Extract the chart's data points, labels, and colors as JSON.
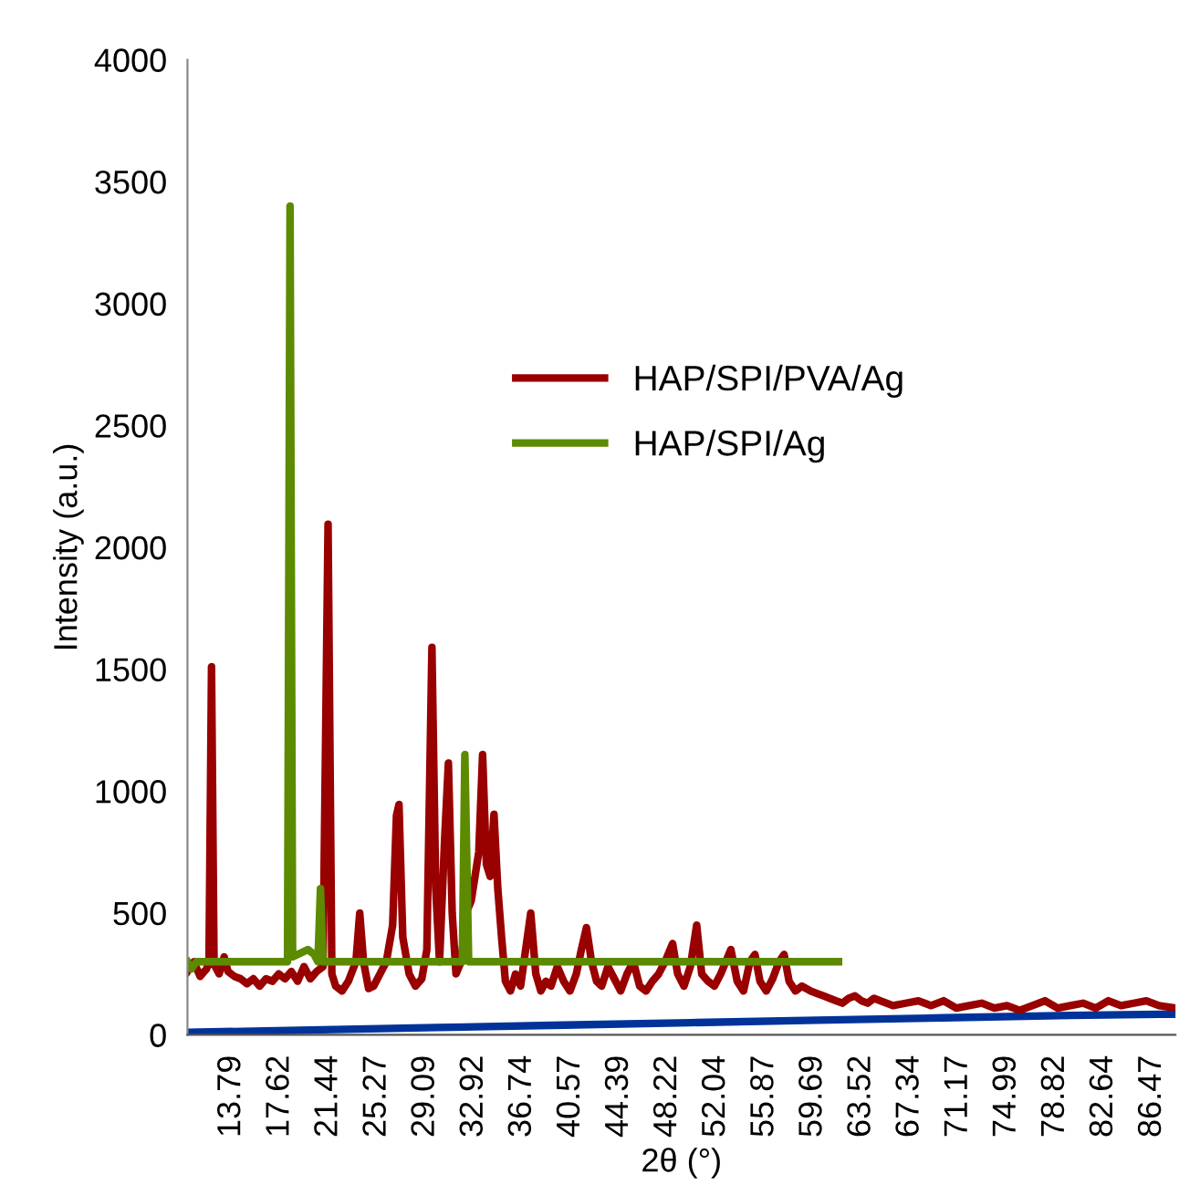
{
  "chart_data": {
    "type": "line",
    "xlabel": "2θ (°)",
    "ylabel": "Intensity (a.u.)",
    "xlim": [
      10.3,
      88.3
    ],
    "ylim": [
      0,
      4000
    ],
    "xticks": [
      13.79,
      17.62,
      21.44,
      25.27,
      29.09,
      32.92,
      36.74,
      40.57,
      44.39,
      48.22,
      52.04,
      55.87,
      59.69,
      63.52,
      67.34,
      71.17,
      74.99,
      78.82,
      82.64,
      86.47
    ],
    "yticks": [
      0,
      500,
      1000,
      1500,
      2000,
      2500,
      3000,
      3500,
      4000
    ],
    "grid": false,
    "legend": "center",
    "marker": "none",
    "line_style": "solid",
    "series": [
      {
        "color": "#003399",
        "x": [
          10.3,
          20,
          30,
          40,
          50,
          60,
          70,
          80,
          88.3
        ],
        "values": [
          10,
          20,
          30,
          40,
          50,
          60,
          70,
          80,
          85
        ]
      },
      {
        "name": "HAP/SPI/PVA/Ag",
        "color": "#990000",
        "x": [
          10.3,
          10.8,
          11.3,
          11.8,
          12.0,
          12.2,
          12.4,
          12.8,
          13.2,
          13.5,
          14.0,
          14.5,
          15.0,
          15.5,
          16.0,
          16.5,
          17.0,
          17.5,
          18.0,
          18.5,
          19.0,
          19.5,
          20.0,
          20.5,
          21.0,
          21.4,
          21.7,
          22.0,
          22.5,
          23.0,
          23.6,
          23.9,
          24.2,
          24.6,
          25.0,
          25.5,
          26.0,
          26.5,
          26.8,
          27.0,
          27.3,
          27.8,
          28.3,
          28.8,
          29.2,
          29.6,
          29.9,
          30.2,
          30.6,
          30.9,
          31.2,
          31.5,
          31.9,
          32.3,
          32.7,
          33.0,
          33.3,
          33.6,
          33.9,
          34.2,
          34.5,
          34.8,
          35.1,
          35.4,
          35.8,
          36.2,
          36.6,
          37.0,
          37.4,
          37.8,
          38.2,
          38.6,
          39.0,
          39.5,
          40.0,
          40.5,
          41.0,
          41.4,
          41.8,
          42.2,
          42.6,
          43.0,
          43.5,
          44.0,
          44.5,
          45.0,
          45.5,
          46.0,
          46.5,
          47.0,
          47.5,
          48.0,
          48.6,
          49.0,
          49.5,
          50.0,
          50.5,
          50.9,
          51.4,
          51.9,
          52.4,
          53.2,
          53.7,
          54.2,
          54.7,
          55.1,
          55.5,
          56.0,
          56.5,
          57.0,
          57.4,
          57.8,
          58.3,
          58.8,
          59.5,
          60.0,
          60.5,
          61.0,
          61.5,
          62.0,
          62.5,
          63.0,
          63.5,
          64.0,
          64.5,
          65.0,
          66.0,
          67.0,
          68.0,
          69.0,
          70.0,
          71.0,
          72.0,
          73.0,
          74.0,
          75.0,
          76.0,
          77.0,
          78.0,
          79.0,
          80.0,
          81.0,
          82.0,
          83.0,
          84.0,
          85.0,
          86.0,
          87.0,
          88.3
        ],
        "values": [
          260,
          300,
          240,
          270,
          300,
          1510,
          290,
          250,
          320,
          260,
          240,
          230,
          210,
          230,
          200,
          230,
          220,
          250,
          230,
          260,
          220,
          280,
          230,
          260,
          280,
          2095,
          250,
          200,
          180,
          220,
          300,
          500,
          300,
          190,
          200,
          250,
          300,
          450,
          900,
          945,
          400,
          250,
          200,
          230,
          350,
          1590,
          600,
          300,
          800,
          1115,
          500,
          250,
          300,
          500,
          550,
          650,
          750,
          1150,
          700,
          650,
          905,
          600,
          400,
          220,
          180,
          250,
          200,
          350,
          500,
          250,
          180,
          220,
          200,
          280,
          220,
          180,
          250,
          350,
          440,
          300,
          220,
          200,
          280,
          230,
          180,
          250,
          300,
          200,
          180,
          220,
          250,
          300,
          375,
          250,
          200,
          280,
          450,
          250,
          220,
          200,
          250,
          350,
          220,
          180,
          300,
          330,
          220,
          180,
          230,
          300,
          330,
          220,
          180,
          200,
          180,
          170,
          160,
          150,
          140,
          130,
          150,
          160,
          140,
          130,
          150,
          140,
          120,
          130,
          140,
          120,
          140,
          110,
          120,
          130,
          110,
          120,
          100,
          120,
          140,
          110,
          120,
          130,
          110,
          140,
          120,
          130,
          140,
          120,
          110
        ]
      },
      {
        "name": "HAP/SPI/Ag",
        "color": "#5c8a00",
        "x": [
          10.3,
          10.6,
          11.0,
          18.2,
          18.4,
          18.6,
          19.8,
          20.3,
          20.6,
          20.8,
          21.0,
          32.0,
          32.2,
          32.5,
          61.7
        ],
        "values": [
          300,
          270,
          300,
          300,
          3400,
          320,
          350,
          330,
          300,
          600,
          300,
          300,
          1150,
          300,
          300
        ]
      }
    ]
  }
}
